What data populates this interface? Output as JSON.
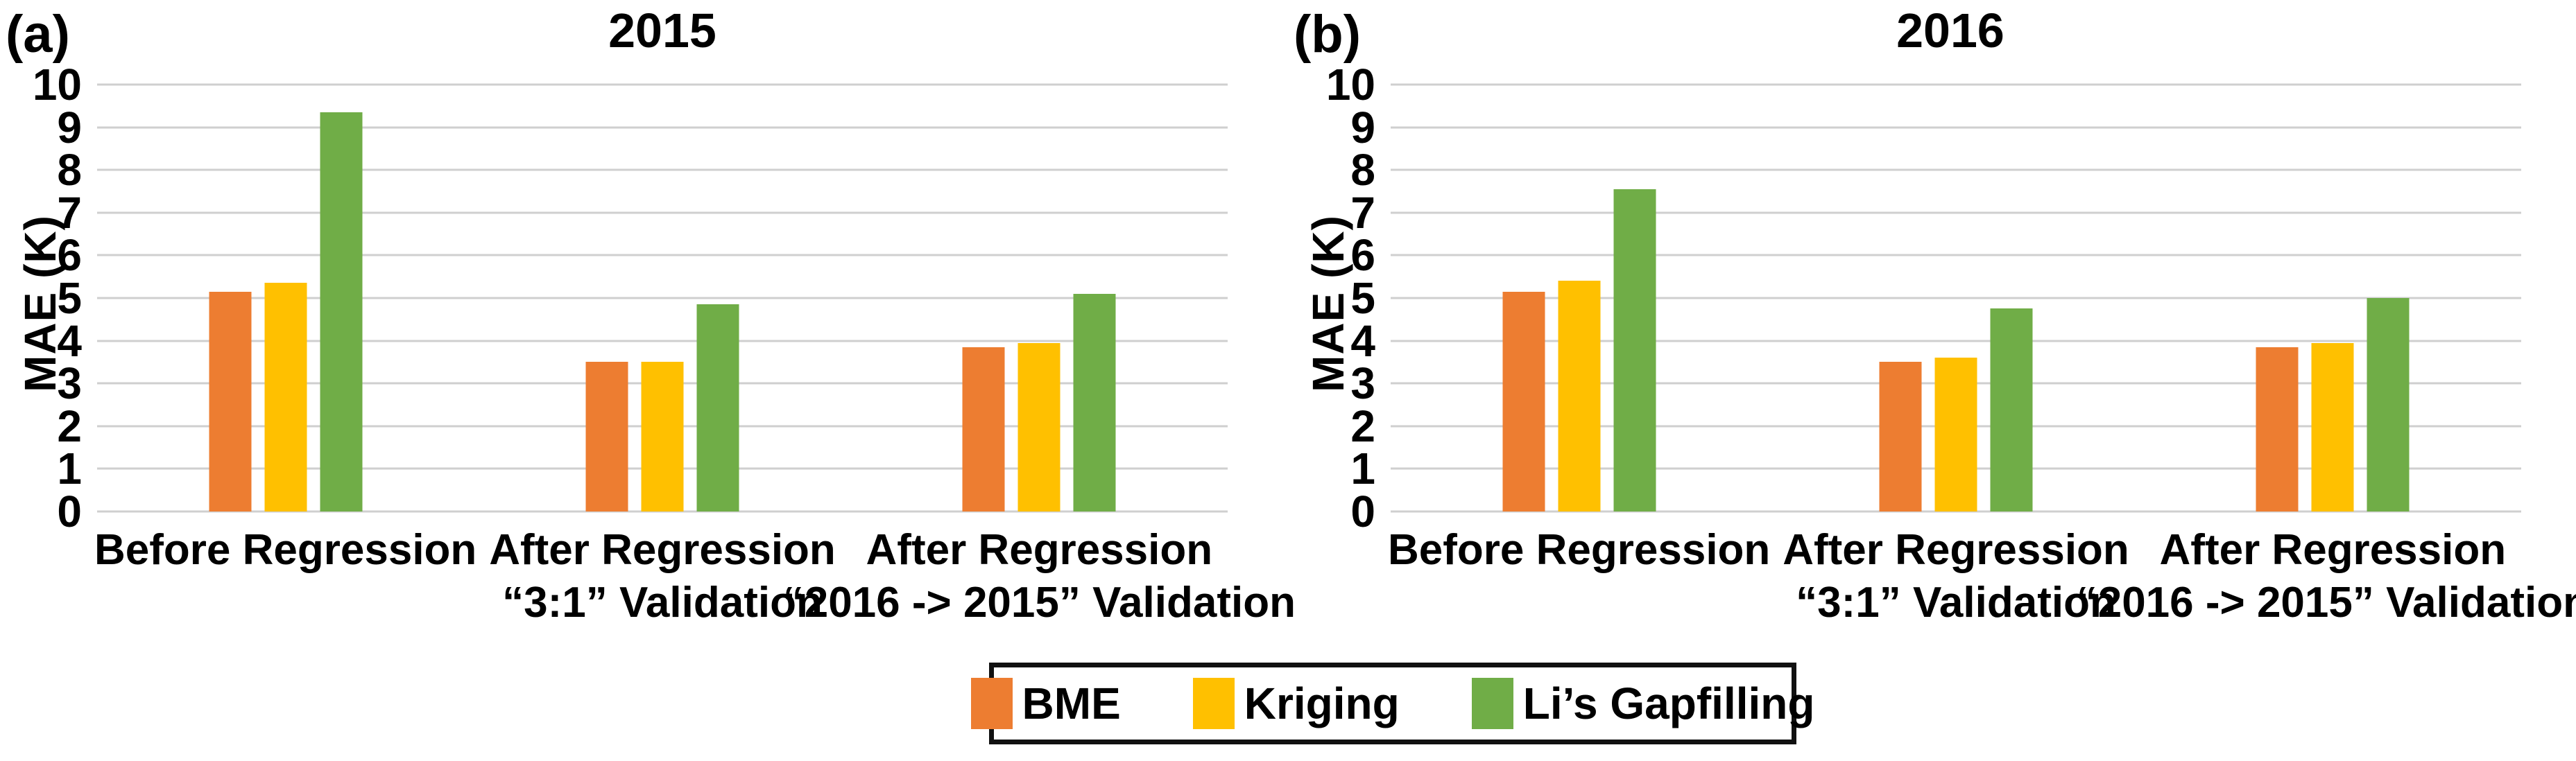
{
  "figure": {
    "background": "#ffffff",
    "gridline_color": "#cfcfcf"
  },
  "legend": {
    "items": [
      {
        "label": "BME",
        "color": "#ED7D31"
      },
      {
        "label": "Kriging",
        "color": "#FFC000"
      },
      {
        "label": "Li’s Gapfilling",
        "color": "#70AD47"
      }
    ],
    "position": "bottom-center",
    "border_color": "#111111"
  },
  "chart_data": [
    {
      "type": "bar",
      "panel_label": "(a)",
      "title": "2015",
      "xlabel": "",
      "ylabel": "MAE (K)",
      "ylim": [
        0,
        10
      ],
      "ytick_step": 1,
      "grid": true,
      "categories": [
        [
          "Before Regression"
        ],
        [
          "After Regression",
          "“3:1” Validation"
        ],
        [
          "After Regression",
          "“2016 -> 2015” Validation"
        ]
      ],
      "series": [
        {
          "name": "BME",
          "color": "#ED7D31",
          "values": [
            5.15,
            3.5,
            3.85
          ]
        },
        {
          "name": "Kriging",
          "color": "#FFC000",
          "values": [
            5.35,
            3.5,
            3.95
          ]
        },
        {
          "name": "Li’s Gapfilling",
          "color": "#70AD47",
          "values": [
            9.35,
            4.85,
            5.1
          ]
        }
      ]
    },
    {
      "type": "bar",
      "panel_label": "(b)",
      "title": "2016",
      "xlabel": "",
      "ylabel": "MAE (K)",
      "ylim": [
        0,
        10
      ],
      "ytick_step": 1,
      "grid": true,
      "categories": [
        [
          "Before Regression"
        ],
        [
          "After Regression",
          "“3:1” Validation"
        ],
        [
          "After Regression",
          "“2016 -> 2015” Validation"
        ]
      ],
      "series": [
        {
          "name": "BME",
          "color": "#ED7D31",
          "values": [
            5.15,
            3.5,
            3.85
          ]
        },
        {
          "name": "Kriging",
          "color": "#FFC000",
          "values": [
            5.4,
            3.6,
            3.95
          ]
        },
        {
          "name": "Li’s Gapfilling",
          "color": "#70AD47",
          "values": [
            7.55,
            4.75,
            5.0
          ]
        }
      ]
    }
  ]
}
